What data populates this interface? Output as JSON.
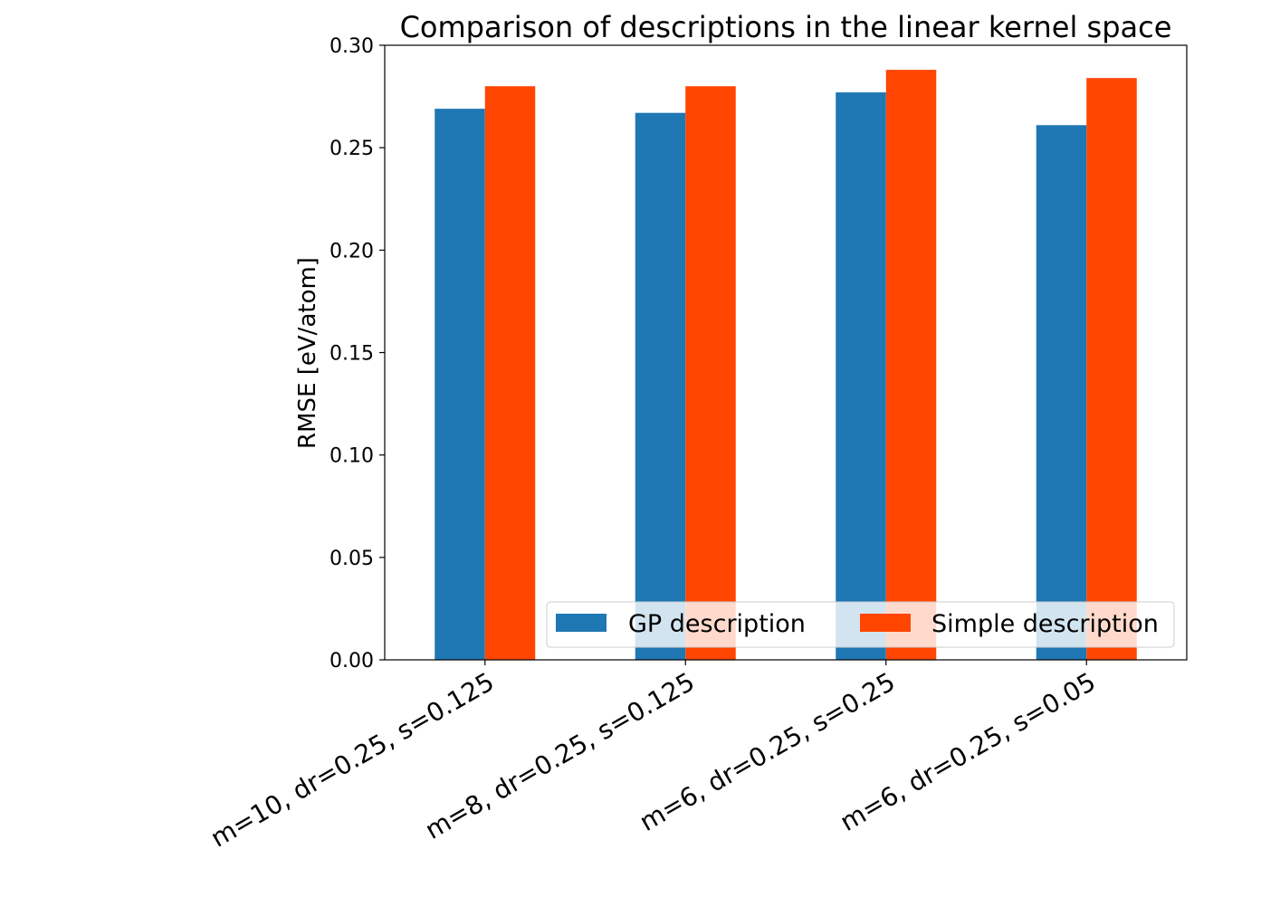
{
  "chart_data": {
    "type": "bar",
    "title": "Comparison of descriptions in the linear kernel space",
    "xlabel": "",
    "ylabel": "RMSE [eV/atom]",
    "ylim": [
      0,
      0.3
    ],
    "yticks": [
      "0.00",
      "0.05",
      "0.10",
      "0.15",
      "0.20",
      "0.25",
      "0.30"
    ],
    "grid": false,
    "legend_position": "bottom-right",
    "categories": [
      "m=10, dr=0.25, s=0.125",
      "m=8, dr=0.25, s=0.125",
      "m=6, dr=0.25, s=0.25",
      "m=6, dr=0.25, s=0.05"
    ],
    "series": [
      {
        "name": "GP description",
        "color": "#1f77b4",
        "values": [
          0.269,
          0.267,
          0.277,
          0.261
        ]
      },
      {
        "name": "Simple description",
        "color": "#ff4500",
        "values": [
          0.28,
          0.28,
          0.288,
          0.284
        ]
      }
    ]
  }
}
